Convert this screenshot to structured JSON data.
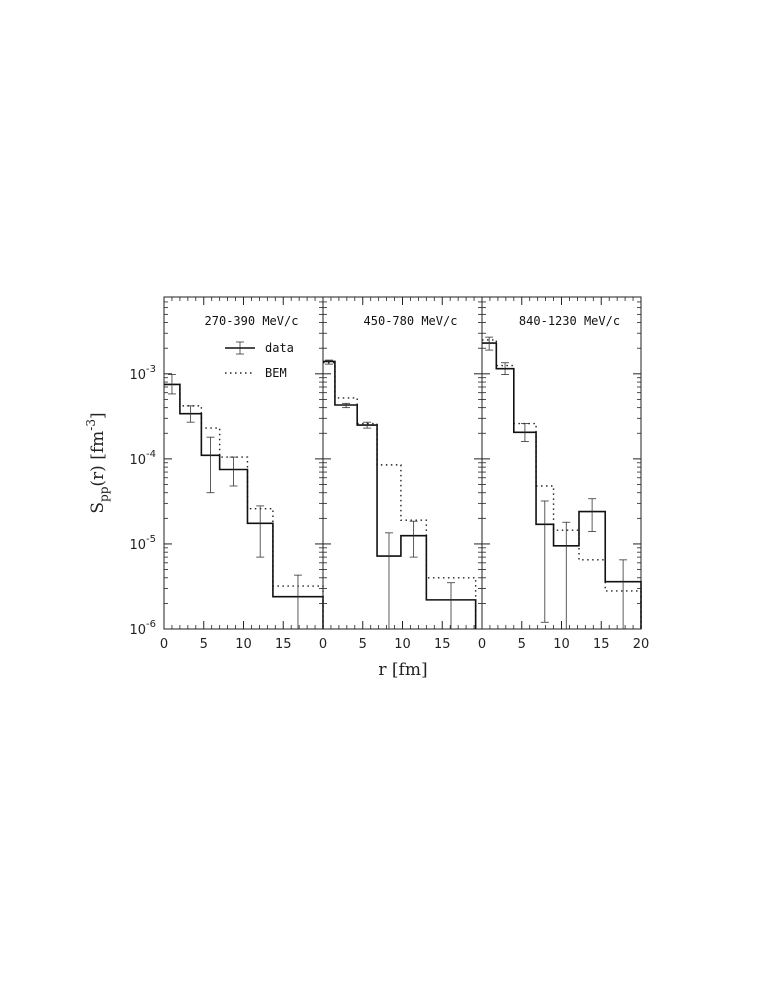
{
  "chart_data": {
    "type": "step-histogram",
    "yscale": "log",
    "ylim": [
      1e-06,
      0.008
    ],
    "ylabel": {
      "base": "S",
      "sub": "pp",
      "rest": "(r)  [fm",
      "sup": "-3",
      "close": "]"
    },
    "xlabel": "r  [fm]",
    "yticks": [
      {
        "base": "10",
        "exp": "-6",
        "value": 1e-06
      },
      {
        "base": "10",
        "exp": "-5",
        "value": 1e-05
      },
      {
        "base": "10",
        "exp": "-4",
        "value": 0.0001
      },
      {
        "base": "10",
        "exp": "-3",
        "value": 0.001
      }
    ],
    "legend": {
      "data_label": "data",
      "model_label": "BEM"
    },
    "panels": [
      {
        "title": "270-390 MeV/c",
        "xlim": [
          0,
          20
        ],
        "xticks": [
          "0",
          "5",
          "10",
          "15"
        ],
        "edges": [
          0,
          2,
          4.7,
          7,
          10.5,
          13.7,
          20
        ],
        "data": [
          0.00075,
          0.00034,
          0.00011,
          7.5e-05,
          1.75e-05,
          2.4e-06
        ],
        "err_lo": [
          0.00058,
          0.00027,
          4e-05,
          4.8e-05,
          7e-06,
          1e-06
        ],
        "err_hi": [
          0.00098,
          0.00042,
          0.00018,
          0.000105,
          2.8e-05,
          4.3e-06
        ],
        "model": [
          0.00075,
          0.00042,
          0.00023,
          0.000105,
          2.6e-05,
          3.2e-06
        ]
      },
      {
        "title": "450-780 MeV/c",
        "xlim": [
          0,
          20
        ],
        "xticks": [
          "0",
          "5",
          "10",
          "15"
        ],
        "edges": [
          0,
          1.5,
          4.3,
          6.8,
          9.8,
          13.0,
          19.2
        ],
        "data": [
          0.0014,
          0.00043,
          0.00025,
          7.2e-06,
          1.25e-05,
          2.2e-06
        ],
        "err_lo": [
          0.0013,
          0.0004,
          0.00023,
          1e-06,
          7e-06,
          1e-06
        ],
        "err_hi": [
          0.00145,
          0.00045,
          0.00027,
          1.35e-05,
          1.85e-05,
          3.5e-06
        ],
        "model": [
          0.00135,
          0.00052,
          0.00026,
          8.5e-05,
          1.9e-05,
          4e-06
        ]
      },
      {
        "title": "840-1230 MeV/c",
        "xlim": [
          0,
          20
        ],
        "xticks": [
          "0",
          "5",
          "10",
          "15",
          "20"
        ],
        "edges": [
          0,
          1.8,
          4.0,
          6.8,
          9.0,
          12.2,
          15.5,
          20
        ],
        "data": [
          0.0023,
          0.00115,
          0.000205,
          1.7e-05,
          9.5e-06,
          2.4e-05,
          3.6e-06
        ],
        "err_lo": [
          0.0019,
          0.00098,
          0.00016,
          1.2e-06,
          1e-06,
          1.4e-05,
          1e-06
        ],
        "err_hi": [
          0.0027,
          0.00135,
          0.00026,
          3.2e-05,
          1.8e-05,
          3.4e-05,
          6.5e-06
        ],
        "model": [
          0.0025,
          0.00125,
          0.00026,
          4.8e-05,
          1.45e-05,
          6.5e-06,
          2.8e-06
        ]
      }
    ]
  }
}
